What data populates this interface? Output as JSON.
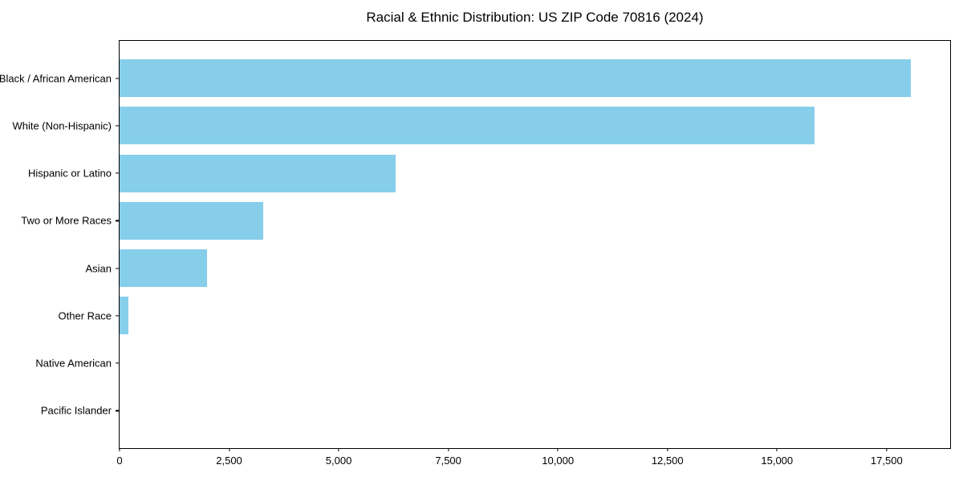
{
  "page": {
    "background_color": "#ffffff"
  },
  "chart_data": {
    "type": "bar",
    "orientation": "horizontal",
    "title": "Racial & Ethnic Distribution: US ZIP Code 70816 (2024)",
    "categories": [
      "Black / African American",
      "White (Non-Hispanic)",
      "Hispanic or Latino",
      "Two or More Races",
      "Asian",
      "Other Race",
      "Native American",
      "Pacific Islander"
    ],
    "values": [
      18050,
      15850,
      6300,
      3280,
      2000,
      210,
      0,
      0
    ],
    "xlabel": "",
    "ylabel": "",
    "xlim": [
      0,
      18950
    ],
    "x_ticks": [
      {
        "value": 0,
        "label": "0"
      },
      {
        "value": 2500,
        "label": "2,500"
      },
      {
        "value": 5000,
        "label": "5,000"
      },
      {
        "value": 7500,
        "label": "7,500"
      },
      {
        "value": 10000,
        "label": "10,000"
      },
      {
        "value": 12500,
        "label": "12,500"
      },
      {
        "value": 15000,
        "label": "15,000"
      },
      {
        "value": 17500,
        "label": "17,500"
      }
    ],
    "bar_color": "#87CEEB",
    "axis_color": "#000000",
    "grid": false,
    "legend": null,
    "frame": true
  }
}
